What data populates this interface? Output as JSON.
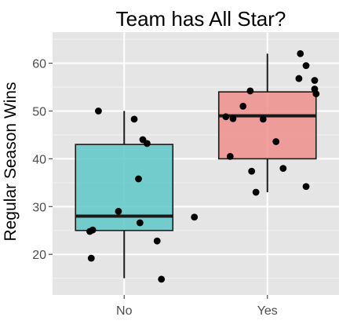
{
  "chart_data": {
    "type": "box",
    "title": "Team has All Star?",
    "xlabel": "",
    "ylabel": "Regular Season Wins",
    "categories": [
      "No",
      "Yes"
    ],
    "ylim": [
      11.5,
      66.5
    ],
    "yticks": [
      20,
      30,
      40,
      50,
      60
    ],
    "grid": true,
    "boxes": [
      {
        "category": "No",
        "color": "#5ec8c8",
        "whisker_low": 15,
        "q1": 25,
        "median": 28,
        "q3": 43,
        "whisker_high": 50,
        "points": [
          50,
          48.3,
          44,
          43.2,
          35.8,
          29,
          27.8,
          26.6,
          25.1,
          24.8,
          22.8,
          19.2,
          14.8
        ]
      },
      {
        "category": "Yes",
        "color": "#ef8f8d",
        "whisker_low": 33,
        "q1": 40,
        "median": 49,
        "q3": 54,
        "whisker_high": 62,
        "points": [
          62,
          59.5,
          56.8,
          56.4,
          54.6,
          54.2,
          53.6,
          51,
          48.8,
          48.4,
          48.3,
          43.6,
          40.5,
          38,
          37.4,
          34.2,
          33
        ]
      }
    ],
    "jitter": [
      [
        -0.18,
        0.07,
        0.13,
        0.16,
        0.1,
        -0.04,
        0.49,
        0.11,
        -0.22,
        -0.24,
        0.23,
        -0.23,
        0.26
      ],
      [
        0.23,
        0.27,
        0.22,
        0.33,
        0.33,
        -0.12,
        0.34,
        -0.17,
        -0.29,
        -0.24,
        -0.03,
        0.06,
        -0.26,
        0.11,
        -0.11,
        0.27,
        -0.08
      ]
    ]
  }
}
